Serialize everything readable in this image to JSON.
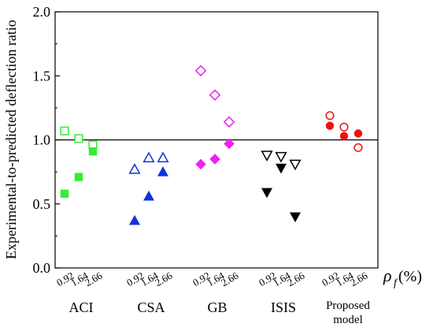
{
  "chart_data": {
    "type": "scatter",
    "title": "",
    "ylabel": "Experimental-to-predicted deflection ratio",
    "xlabel_symbol": "ρ",
    "xlabel_subscript": "f",
    "xlabel_unit": "(%)",
    "ylim": [
      0.0,
      2.0
    ],
    "yticks": [
      "0.0",
      "0.5",
      "1.0",
      "1.5",
      "2.0"
    ],
    "reference_line_y": 1.0,
    "grid": false,
    "legend": "none",
    "groups": [
      {
        "label": "ACI",
        "color": "#33ee33",
        "marker": "square",
        "rho": [
          "0.92",
          "1.64",
          "2.66"
        ],
        "open": [
          1.07,
          1.01,
          0.96
        ],
        "filled": [
          0.58,
          0.71,
          0.91
        ]
      },
      {
        "label": "CSA",
        "color": "#1133dd",
        "marker": "triangle-up",
        "rho": [
          "0.92",
          "1.64",
          "2.66"
        ],
        "open": [
          0.77,
          0.86,
          0.86
        ],
        "filled": [
          0.37,
          0.56,
          0.75
        ]
      },
      {
        "label": "GB",
        "color": "#ee22ee",
        "marker": "diamond",
        "rho": [
          "0.92",
          "1.64",
          "2.66"
        ],
        "open": [
          1.54,
          1.35,
          1.14
        ],
        "filled": [
          0.81,
          0.85,
          0.97
        ]
      },
      {
        "label": "ISIS",
        "color": "#000000",
        "marker": "triangle-down",
        "rho": [
          "0.92",
          "1.64",
          "2.66"
        ],
        "open": [
          0.88,
          0.87,
          0.81
        ],
        "filled": [
          0.59,
          0.78,
          0.4
        ]
      },
      {
        "label": "Proposed model",
        "label_lines": [
          "Proposed",
          "model"
        ],
        "color": "#ee1111",
        "marker": "circle",
        "rho": [
          "0.92",
          "1.64",
          "2.66"
        ],
        "open": [
          1.19,
          1.1,
          0.94
        ],
        "filled": [
          1.11,
          1.03,
          1.05
        ]
      }
    ]
  }
}
